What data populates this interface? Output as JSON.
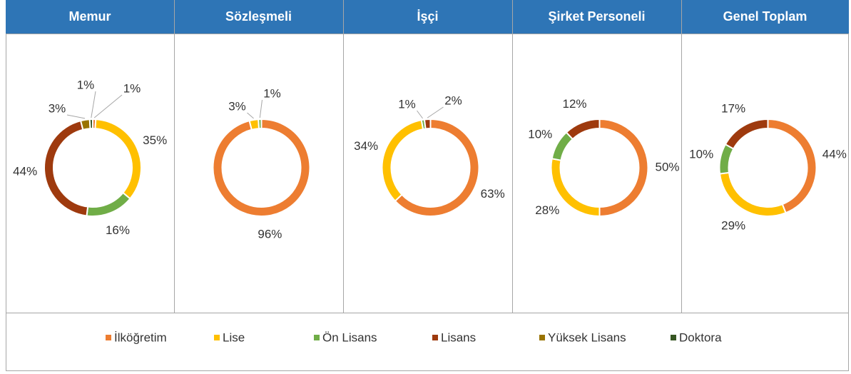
{
  "chart_data": [
    {
      "type": "donut",
      "title": "Memur",
      "categories": [
        "İlköğretim",
        "Lise",
        "Ön Lisans",
        "Lisans",
        "Yüksek Lisans",
        "Doktora"
      ],
      "values": [
        1,
        35,
        16,
        44,
        3,
        1
      ],
      "value_labels": [
        "1%",
        "35%",
        "16%",
        "44%",
        "3%",
        "1%"
      ]
    },
    {
      "type": "donut",
      "title": "Sözleşmeli",
      "categories": [
        "İlköğretim",
        "Lise",
        "Ön Lisans"
      ],
      "values": [
        96,
        3,
        1
      ],
      "value_labels": [
        "96%",
        "3%",
        "1%"
      ]
    },
    {
      "type": "donut",
      "title": "İşçi",
      "categories": [
        "İlköğretim",
        "Lise",
        "Ön Lisans",
        "Lisans"
      ],
      "values": [
        63,
        34,
        1,
        2
      ],
      "value_labels": [
        "63%",
        "34%",
        "1%",
        "2%"
      ]
    },
    {
      "type": "donut",
      "title": "Şirket Personeli",
      "categories": [
        "İlköğretim",
        "Lise",
        "Ön Lisans",
        "Lisans"
      ],
      "values": [
        50,
        28,
        10,
        12
      ],
      "value_labels": [
        "50%",
        "28%",
        "10%",
        "12%"
      ]
    },
    {
      "type": "donut",
      "title": "Genel Toplam",
      "categories": [
        "İlköğretim",
        "Lise",
        "Ön Lisans",
        "Lisans"
      ],
      "values": [
        44,
        29,
        10,
        17
      ],
      "value_labels": [
        "44%",
        "29%",
        "10%",
        "17%"
      ]
    }
  ],
  "legend": {
    "categories": [
      "İlköğretim",
      "Lise",
      "Ön Lisans",
      "Lisans",
      "Yüksek Lisans",
      "Doktora"
    ],
    "colors": [
      "#ed7d31",
      "#ffc000",
      "#70ad47",
      "#9e3a0e",
      "#997300",
      "#375623"
    ]
  }
}
